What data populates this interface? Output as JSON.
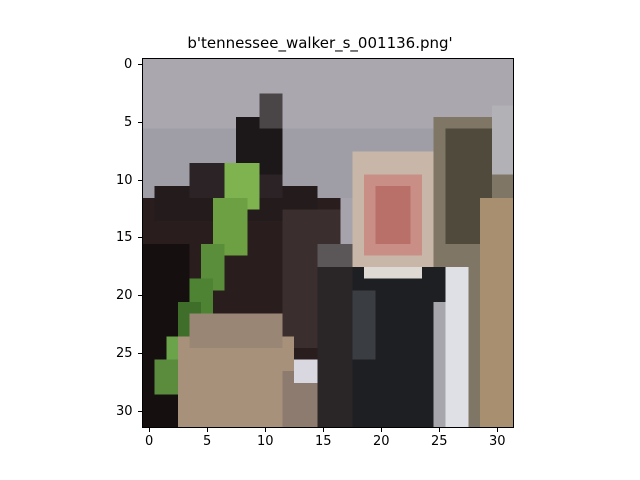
{
  "figure": {
    "title": "b'tennessee_walker_s_001136.png'",
    "x_ticks": [
      "0",
      "5",
      "10",
      "15",
      "20",
      "25",
      "30"
    ],
    "y_ticks": [
      "0",
      "5",
      "10",
      "15",
      "20",
      "25",
      "30"
    ]
  },
  "image": {
    "description_colors": {
      "sky": "#a6a3ac",
      "horse_dark": "#2a1d1e",
      "bridle_green": "#7fb34f",
      "face_skin": "#c98f86",
      "hair_light": "#c8b7a8",
      "shirt_white": "#dfe0e6",
      "jacket_dark": "#1d1f22",
      "tan_ground": "#a8917a"
    }
  }
}
